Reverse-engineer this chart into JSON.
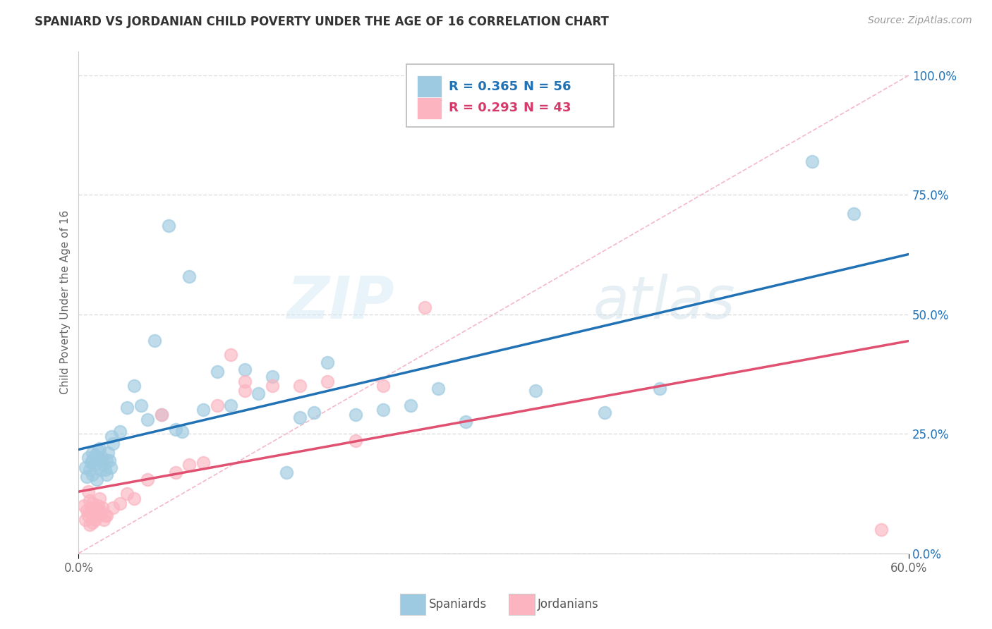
{
  "title": "SPANIARD VS JORDANIAN CHILD POVERTY UNDER THE AGE OF 16 CORRELATION CHART",
  "source": "Source: ZipAtlas.com",
  "ylabel": "Child Poverty Under the Age of 16",
  "watermark": "ZIPatlas",
  "xmin": 0.0,
  "xmax": 0.6,
  "ymin": 0.0,
  "ymax": 1.05,
  "yticks": [
    0.0,
    0.25,
    0.5,
    0.75,
    1.0
  ],
  "ytick_labels": [
    "0.0%",
    "25.0%",
    "50.0%",
    "75.0%",
    "100.0%"
  ],
  "xtick_labels": [
    "0.0%",
    "60.0%"
  ],
  "spaniards_R": 0.365,
  "spaniards_N": 56,
  "jordanians_R": 0.293,
  "jordanians_N": 43,
  "blue_color": "#9ecae1",
  "pink_color": "#fbb4c0",
  "blue_line_color": "#2171b5",
  "pink_line_color": "#e05070",
  "blue_text_color": "#2171b5",
  "pink_text_color": "#d63a6a",
  "ref_line_color": "#f4b8c8",
  "spaniards_x": [
    0.005,
    0.006,
    0.007,
    0.008,
    0.009,
    0.01,
    0.01,
    0.01,
    0.011,
    0.012,
    0.013,
    0.014,
    0.015,
    0.015,
    0.016,
    0.017,
    0.018,
    0.019,
    0.02,
    0.02,
    0.021,
    0.022,
    0.023,
    0.024,
    0.025,
    0.03,
    0.035,
    0.04,
    0.045,
    0.05,
    0.055,
    0.06,
    0.065,
    0.07,
    0.075,
    0.08,
    0.09,
    0.1,
    0.11,
    0.12,
    0.13,
    0.14,
    0.15,
    0.16,
    0.17,
    0.18,
    0.2,
    0.22,
    0.24,
    0.26,
    0.28,
    0.33,
    0.38,
    0.42,
    0.53,
    0.56
  ],
  "spaniards_y": [
    0.18,
    0.16,
    0.2,
    0.175,
    0.19,
    0.21,
    0.195,
    0.165,
    0.185,
    0.205,
    0.155,
    0.215,
    0.195,
    0.22,
    0.175,
    0.2,
    0.185,
    0.175,
    0.165,
    0.195,
    0.21,
    0.195,
    0.18,
    0.245,
    0.23,
    0.255,
    0.305,
    0.35,
    0.31,
    0.28,
    0.445,
    0.29,
    0.685,
    0.26,
    0.255,
    0.58,
    0.3,
    0.38,
    0.31,
    0.385,
    0.335,
    0.37,
    0.17,
    0.285,
    0.295,
    0.4,
    0.29,
    0.3,
    0.31,
    0.345,
    0.275,
    0.34,
    0.295,
    0.345,
    0.82,
    0.71
  ],
  "jordanians_x": [
    0.004,
    0.005,
    0.006,
    0.007,
    0.007,
    0.008,
    0.008,
    0.009,
    0.009,
    0.01,
    0.01,
    0.01,
    0.011,
    0.012,
    0.013,
    0.014,
    0.015,
    0.015,
    0.016,
    0.017,
    0.018,
    0.019,
    0.02,
    0.025,
    0.03,
    0.035,
    0.04,
    0.05,
    0.06,
    0.07,
    0.08,
    0.09,
    0.1,
    0.12,
    0.14,
    0.16,
    0.18,
    0.2,
    0.22,
    0.25,
    0.11,
    0.12,
    0.58
  ],
  "jordanians_y": [
    0.1,
    0.07,
    0.09,
    0.08,
    0.13,
    0.06,
    0.11,
    0.085,
    0.095,
    0.065,
    0.105,
    0.075,
    0.095,
    0.07,
    0.08,
    0.1,
    0.09,
    0.115,
    0.085,
    0.095,
    0.07,
    0.08,
    0.08,
    0.095,
    0.105,
    0.125,
    0.115,
    0.155,
    0.29,
    0.17,
    0.185,
    0.19,
    0.31,
    0.34,
    0.35,
    0.35,
    0.36,
    0.235,
    0.35,
    0.515,
    0.415,
    0.36,
    0.05
  ]
}
